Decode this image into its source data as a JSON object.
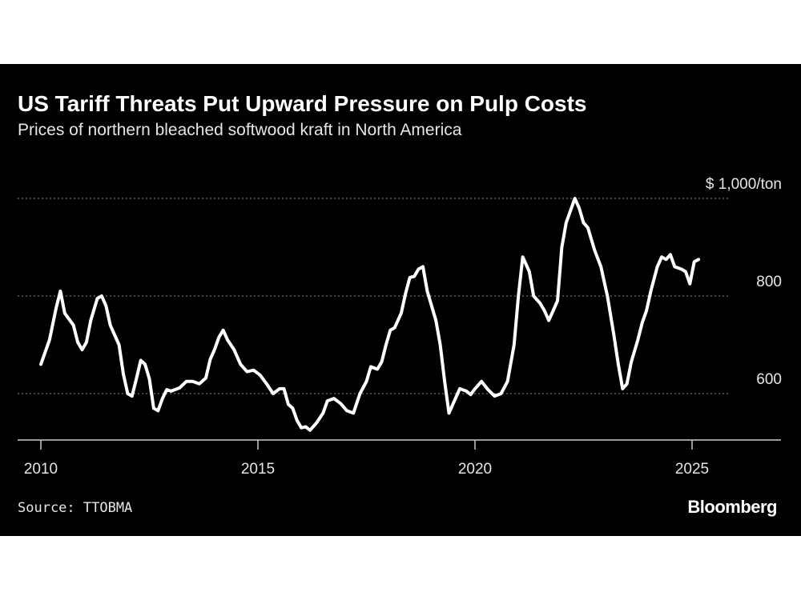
{
  "title": "US Tariff Threats Put Upward Pressure on Pulp Costs",
  "subtitle": "Prices of northern bleached softwood kraft in North America",
  "source": "Source: TTOBMA",
  "brand": "Bloomberg",
  "chart_data": {
    "type": "line",
    "title": "US Tariff Threats Put Upward Pressure on Pulp Costs",
    "subtitle": "Prices of northern bleached softwood kraft in North America",
    "ylabel": "",
    "xlabel": "",
    "y_unit_label": "$ 1,000/ton",
    "yticks": [
      600,
      800,
      1000
    ],
    "ytick_labels": [
      "600",
      "800",
      "$ 1,000/ton"
    ],
    "xticks": [
      2010,
      2015,
      2020,
      2025
    ],
    "xtick_labels": [
      "2010",
      "2015",
      "2020",
      "2025"
    ],
    "xlim": [
      2010,
      2026.7
    ],
    "ylim": [
      505,
      1020
    ],
    "grid": "horizontal dotted",
    "legend": "none",
    "colors": {
      "line": "#ffffff",
      "background": "#000000",
      "grid": "#8c8c8c"
    },
    "series": [
      {
        "values": [
          [
            2010.0,
            660
          ],
          [
            2010.2,
            710
          ],
          [
            2010.35,
            775
          ],
          [
            2010.45,
            810
          ],
          [
            2010.55,
            765
          ],
          [
            2010.75,
            740
          ],
          [
            2010.85,
            705
          ],
          [
            2010.95,
            690
          ],
          [
            2011.05,
            705
          ],
          [
            2011.15,
            750
          ],
          [
            2011.3,
            795
          ],
          [
            2011.4,
            800
          ],
          [
            2011.5,
            780
          ],
          [
            2011.6,
            740
          ],
          [
            2011.8,
            700
          ],
          [
            2011.9,
            640
          ],
          [
            2012.0,
            600
          ],
          [
            2012.1,
            595
          ],
          [
            2012.2,
            630
          ],
          [
            2012.3,
            668
          ],
          [
            2012.4,
            660
          ],
          [
            2012.5,
            630
          ],
          [
            2012.6,
            570
          ],
          [
            2012.7,
            565
          ],
          [
            2012.8,
            590
          ],
          [
            2012.9,
            608
          ],
          [
            2013.0,
            605
          ],
          [
            2013.2,
            612
          ],
          [
            2013.35,
            625
          ],
          [
            2013.5,
            625
          ],
          [
            2013.65,
            620
          ],
          [
            2013.8,
            632
          ],
          [
            2013.9,
            670
          ],
          [
            2014.0,
            690
          ],
          [
            2014.1,
            715
          ],
          [
            2014.2,
            730
          ],
          [
            2014.3,
            710
          ],
          [
            2014.45,
            690
          ],
          [
            2014.6,
            660
          ],
          [
            2014.75,
            645
          ],
          [
            2014.9,
            648
          ],
          [
            2015.05,
            638
          ],
          [
            2015.2,
            620
          ],
          [
            2015.35,
            600
          ],
          [
            2015.5,
            610
          ],
          [
            2015.6,
            610
          ],
          [
            2015.7,
            578
          ],
          [
            2015.8,
            570
          ],
          [
            2015.9,
            545
          ],
          [
            2016.0,
            530
          ],
          [
            2016.1,
            532
          ],
          [
            2016.2,
            525
          ],
          [
            2016.35,
            540
          ],
          [
            2016.5,
            560
          ],
          [
            2016.6,
            585
          ],
          [
            2016.75,
            590
          ],
          [
            2016.9,
            580
          ],
          [
            2017.05,
            565
          ],
          [
            2017.2,
            560
          ],
          [
            2017.35,
            600
          ],
          [
            2017.5,
            625
          ],
          [
            2017.6,
            655
          ],
          [
            2017.75,
            650
          ],
          [
            2017.85,
            665
          ],
          [
            2017.95,
            700
          ],
          [
            2018.05,
            730
          ],
          [
            2018.15,
            735
          ],
          [
            2018.3,
            765
          ],
          [
            2018.4,
            805
          ],
          [
            2018.5,
            838
          ],
          [
            2018.6,
            840
          ],
          [
            2018.7,
            855
          ],
          [
            2018.8,
            860
          ],
          [
            2018.9,
            810
          ],
          [
            2019.0,
            780
          ],
          [
            2019.1,
            750
          ],
          [
            2019.2,
            700
          ],
          [
            2019.3,
            625
          ],
          [
            2019.4,
            560
          ],
          [
            2019.5,
            580
          ],
          [
            2019.65,
            610
          ],
          [
            2019.8,
            605
          ],
          [
            2019.9,
            598
          ],
          [
            2020.0,
            610
          ],
          [
            2020.15,
            625
          ],
          [
            2020.3,
            608
          ],
          [
            2020.45,
            595
          ],
          [
            2020.6,
            600
          ],
          [
            2020.75,
            625
          ],
          [
            2020.9,
            700
          ],
          [
            2021.0,
            800
          ],
          [
            2021.1,
            880
          ],
          [
            2021.25,
            850
          ],
          [
            2021.35,
            800
          ],
          [
            2021.5,
            785
          ],
          [
            2021.6,
            770
          ],
          [
            2021.7,
            750
          ],
          [
            2021.8,
            770
          ],
          [
            2021.9,
            790
          ],
          [
            2022.0,
            900
          ],
          [
            2022.1,
            950
          ],
          [
            2022.2,
            975
          ],
          [
            2022.3,
            1000
          ],
          [
            2022.4,
            980
          ],
          [
            2022.5,
            950
          ],
          [
            2022.6,
            940
          ],
          [
            2022.75,
            895
          ],
          [
            2022.9,
            860
          ],
          [
            2023.05,
            800
          ],
          [
            2023.2,
            720
          ],
          [
            2023.3,
            660
          ],
          [
            2023.4,
            610
          ],
          [
            2023.5,
            620
          ],
          [
            2023.6,
            665
          ],
          [
            2023.75,
            710
          ],
          [
            2023.85,
            745
          ],
          [
            2023.95,
            770
          ],
          [
            2024.05,
            810
          ],
          [
            2024.2,
            860
          ],
          [
            2024.3,
            880
          ],
          [
            2024.4,
            875
          ],
          [
            2024.5,
            885
          ],
          [
            2024.6,
            860
          ],
          [
            2024.75,
            855
          ],
          [
            2024.85,
            850
          ],
          [
            2024.95,
            825
          ],
          [
            2025.05,
            870
          ],
          [
            2025.15,
            875
          ]
        ]
      }
    ]
  }
}
